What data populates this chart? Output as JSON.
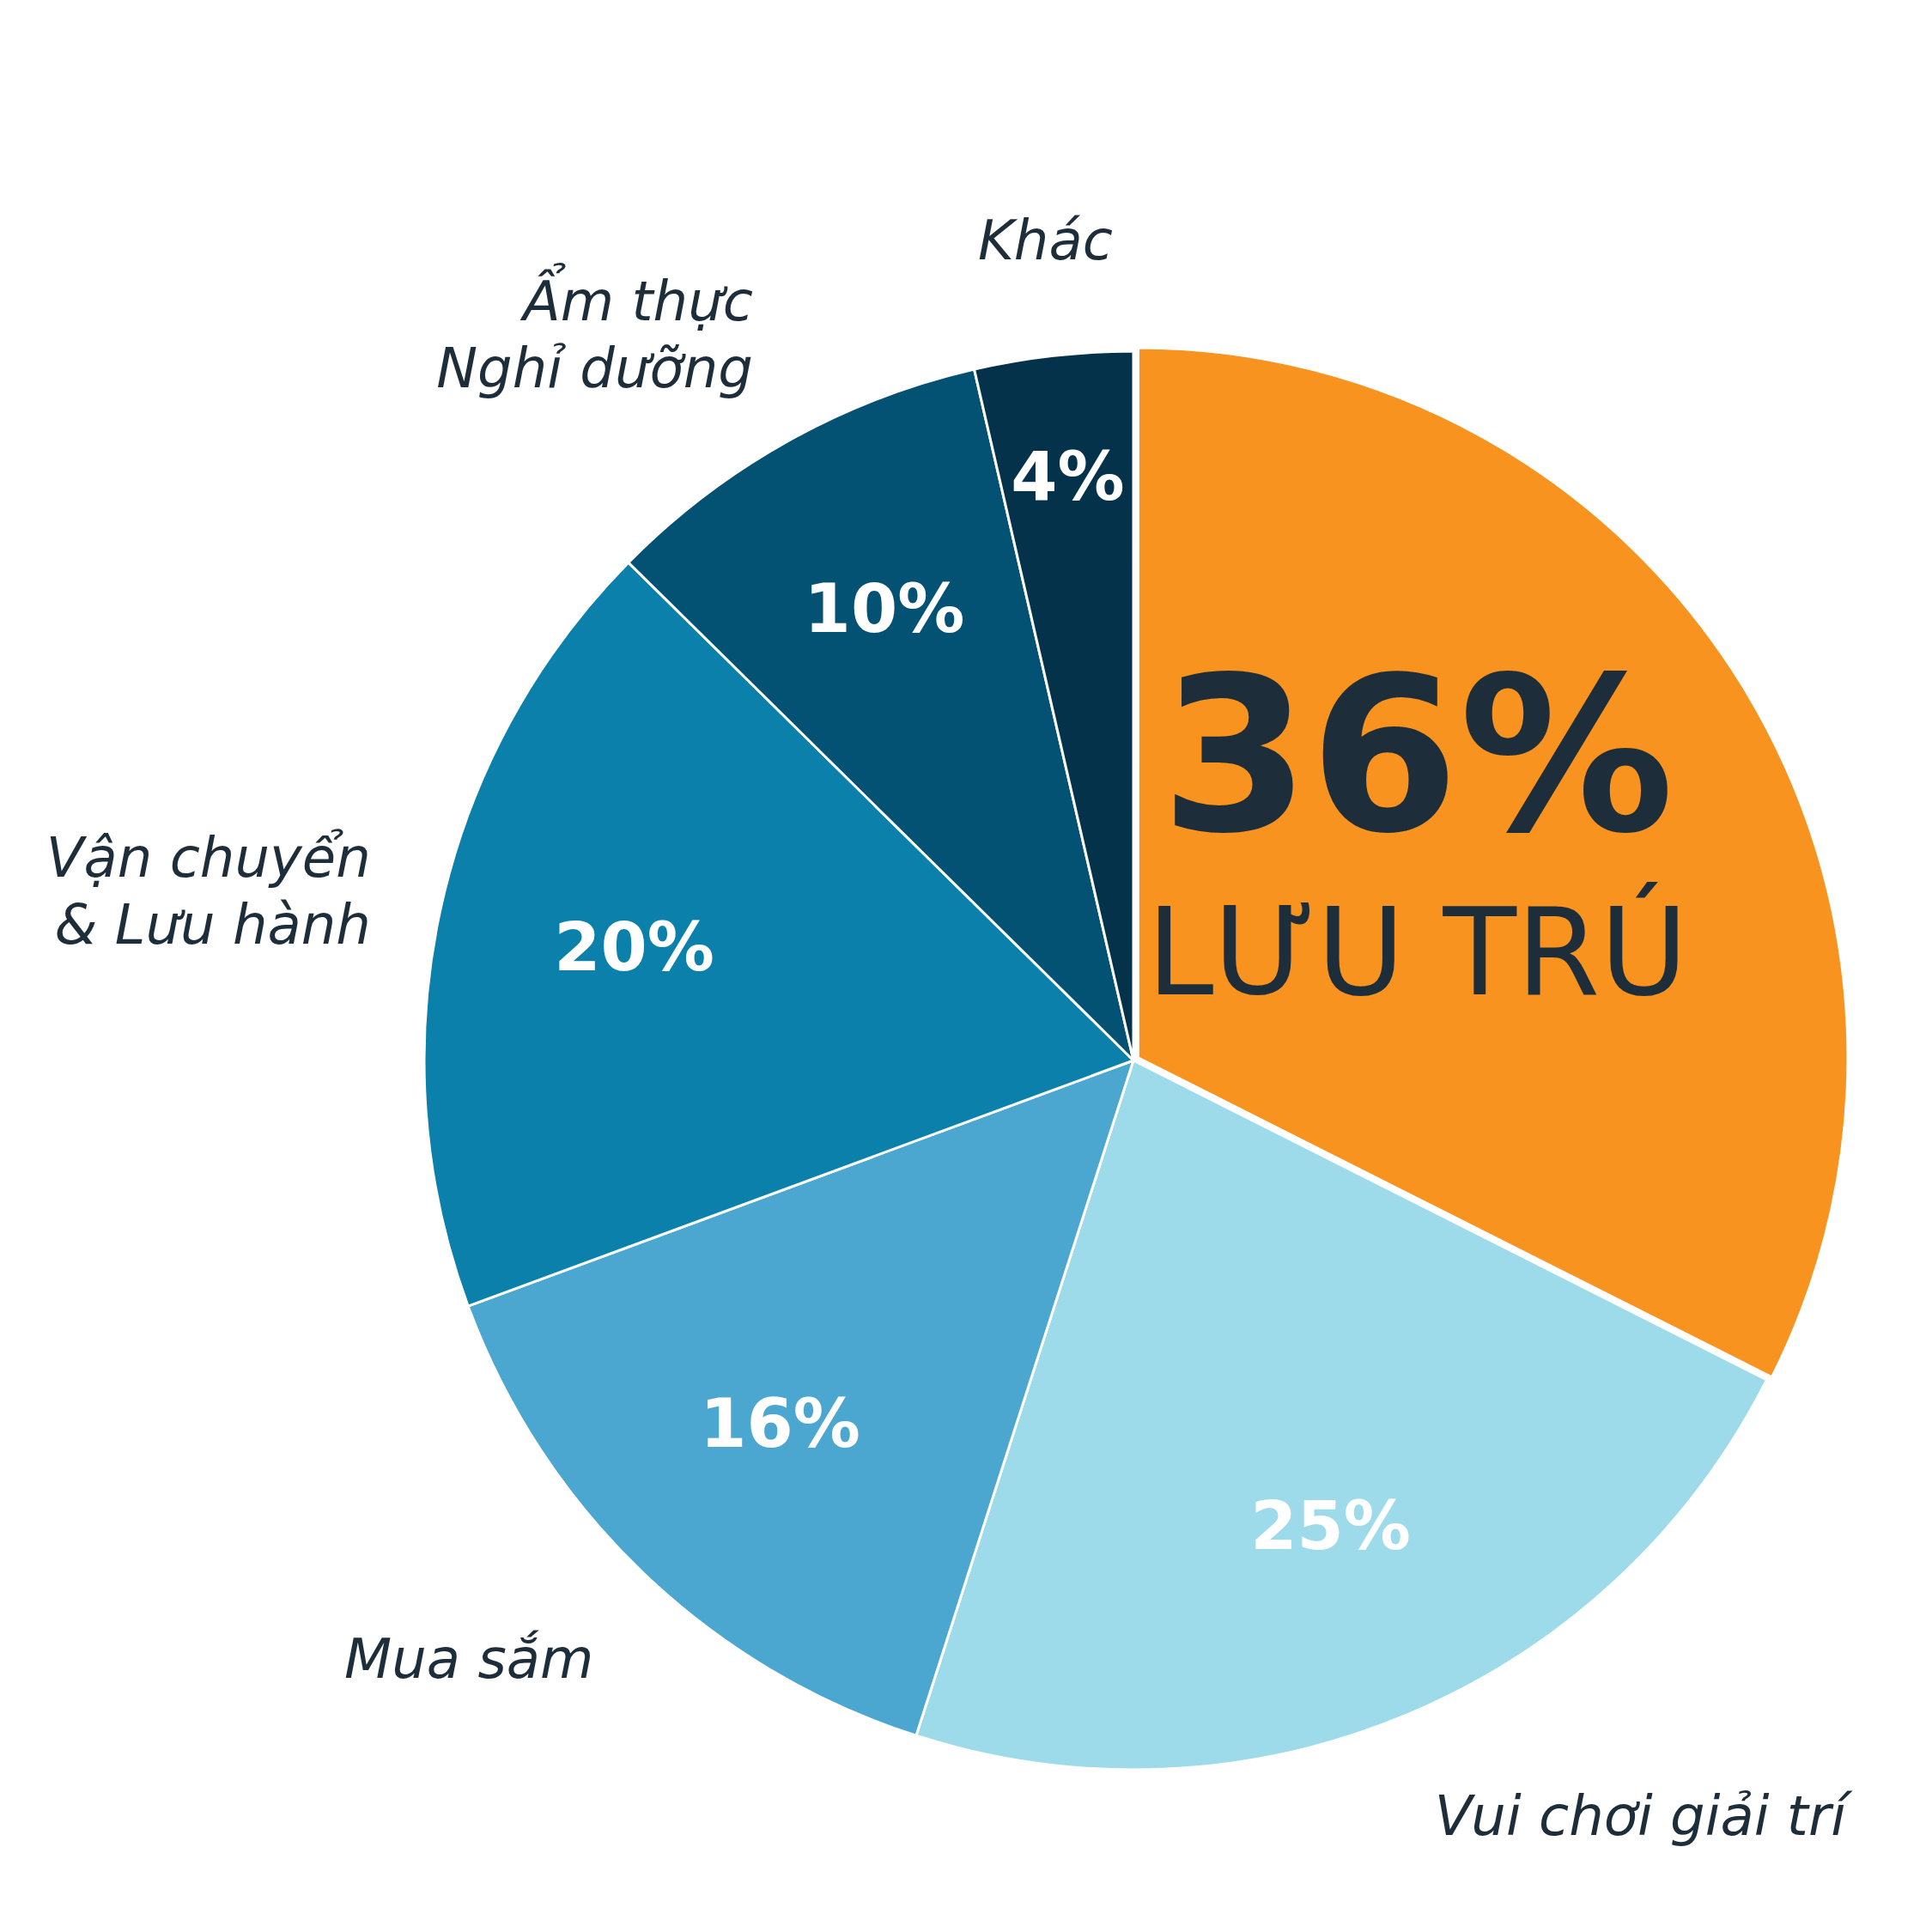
{
  "chart_data": {
    "type": "pie",
    "categories": [
      "LƯU TRÚ",
      "Vui chơi giải trí",
      "Mua sắm",
      "Vận chuyển\n& Lưu hành",
      "Ẩm thực\nNghỉ dưỡng",
      "Khác"
    ],
    "values": [
      36,
      25,
      16,
      20,
      10,
      4
    ],
    "colors": [
      "#f7931e",
      "#9ddbea",
      "#4ba7d0",
      "#0a80aa",
      "#035173",
      "#03324a"
    ],
    "value_labels": [
      "36%",
      "25%",
      "16%",
      "20%",
      "10%",
      "4%"
    ],
    "legend": false
  }
}
